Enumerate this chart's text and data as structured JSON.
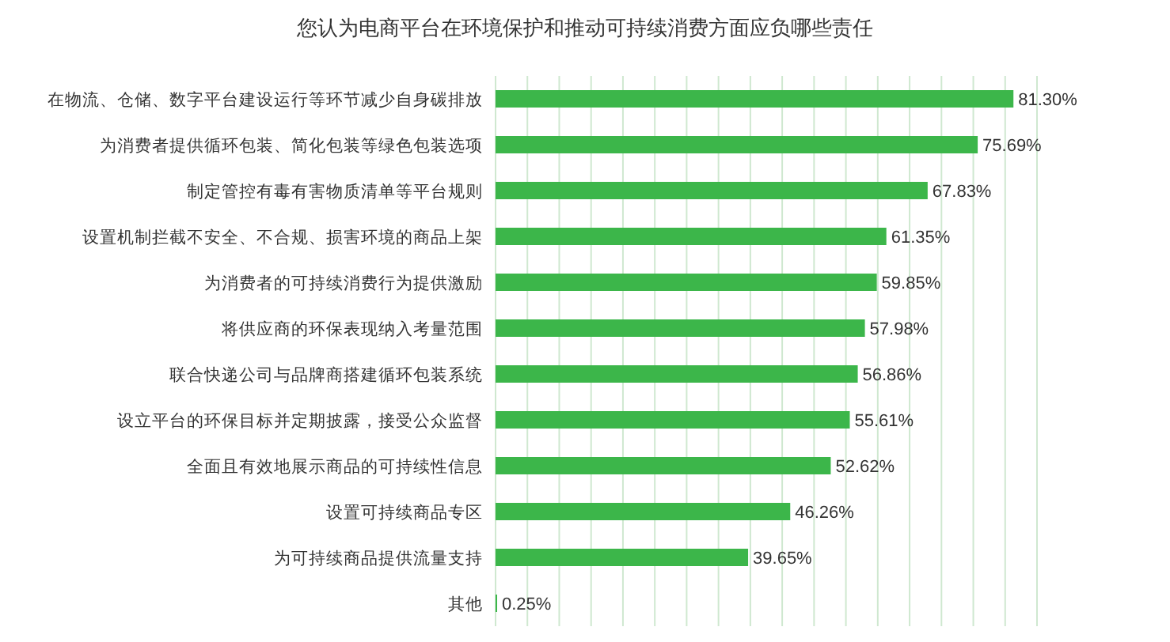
{
  "chart_data": {
    "type": "bar",
    "orientation": "horizontal",
    "title": "您认为电商平台在环境保护和推动可持续消费方面应负哪些责任",
    "categories": [
      "在物流、仓储、数字平台建设运行等环节减少自身碳排放",
      "为消费者提供循环包装、简化包装等绿色包装选项",
      "制定管控有毒有害物质清单等平台规则",
      "设置机制拦截不安全、不合规、损害环境的商品上架",
      "为消费者的可持续消费行为提供激励",
      "将供应商的环保表现纳入考量范围",
      "联合快递公司与品牌商搭建循环包装系统",
      "设立平台的环保目标并定期披露，接受公众监督",
      "全面且有效地展示商品的可持续性信息",
      "设置可持续商品专区",
      "为可持续商品提供流量支持",
      "其他"
    ],
    "values": [
      81.3,
      75.69,
      67.83,
      61.35,
      59.85,
      57.98,
      56.86,
      55.61,
      52.62,
      46.26,
      39.65,
      0.25
    ],
    "value_labels": [
      "81.30%",
      "75.69%",
      "67.83%",
      "61.35%",
      "59.85%",
      "57.98%",
      "56.86%",
      "55.61%",
      "52.62%",
      "46.26%",
      "39.65%",
      "0.25%"
    ],
    "color": "#3cb64a",
    "xlim": [
      0,
      85
    ],
    "xticks": [
      {
        "value": 0,
        "label": null
      },
      {
        "value": 5,
        "label": null
      },
      {
        "value": 10,
        "label": null
      },
      {
        "value": 15,
        "label": null
      },
      {
        "value": 20,
        "label": null
      },
      {
        "value": 25,
        "label": null
      },
      {
        "value": 30,
        "label": null
      },
      {
        "value": 35,
        "label": null
      },
      {
        "value": 40,
        "label": null
      },
      {
        "value": 45,
        "label": null
      },
      {
        "value": 50,
        "label": null
      },
      {
        "value": 55,
        "label": null
      },
      {
        "value": 60,
        "label": null
      },
      {
        "value": 65,
        "label": null
      },
      {
        "value": 70,
        "label": null
      },
      {
        "value": 75,
        "label": null
      },
      {
        "value": 80,
        "label": null
      },
      {
        "value": 85,
        "label": null
      }
    ],
    "grid": "x",
    "tick_labels": "y"
  }
}
